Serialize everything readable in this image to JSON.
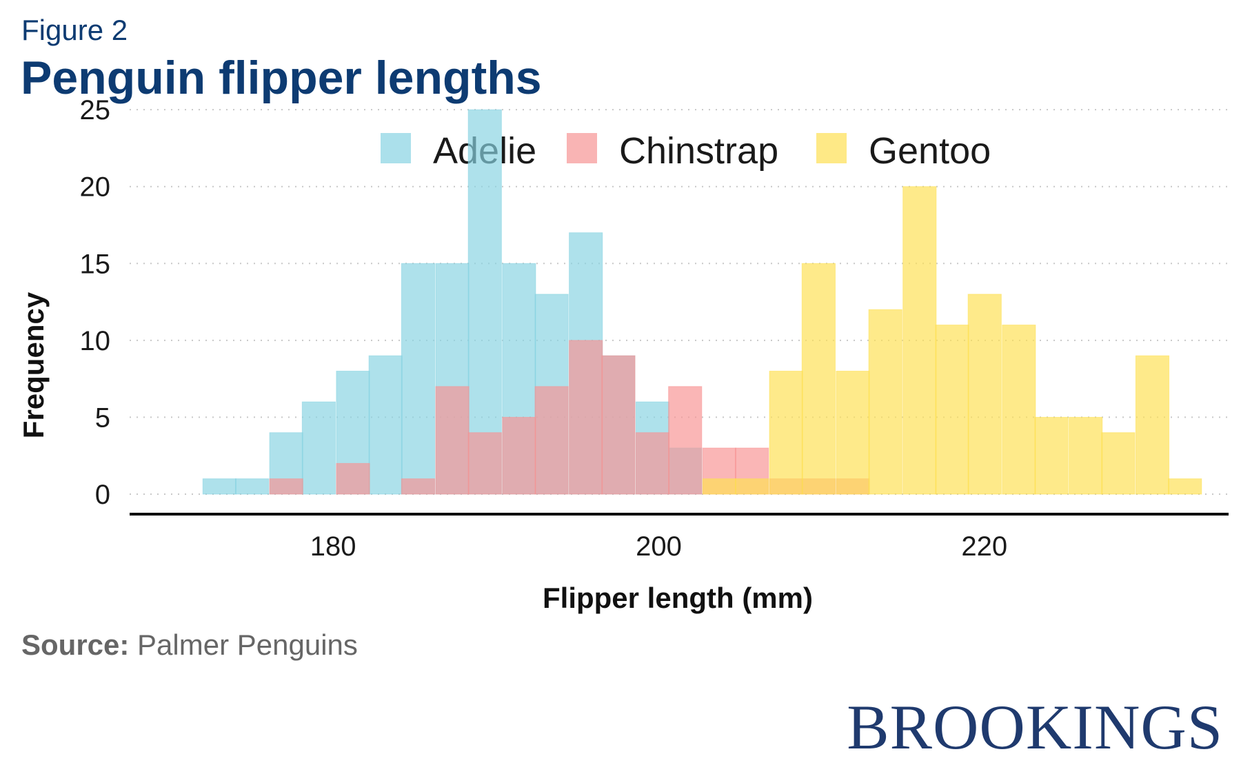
{
  "figure_label": "Figure 2",
  "title": "Penguin flipper lengths",
  "source_label": "Source:",
  "source_text": "Palmer Penguins",
  "brand": "BROOKINGS",
  "chart_data": {
    "type": "bar",
    "subtype": "overlapping-histogram",
    "bin_width": 2.04,
    "xlabel": "Flipper length (mm)",
    "ylabel": "Frequency",
    "xlim": [
      167.5,
      235
    ],
    "ylim": [
      -1.3,
      25.5
    ],
    "xticks": [
      180,
      200,
      220
    ],
    "yticks": [
      0,
      5,
      10,
      15,
      20,
      25
    ],
    "grid": "horizontal-dotted",
    "legend_position": "top-center",
    "series": [
      {
        "name": "Adelie",
        "color": "#87d3e2",
        "bin_starts": [
          172.0,
          174.0,
          176.1,
          178.1,
          180.2,
          182.2,
          184.2,
          186.3,
          188.3,
          190.4,
          192.4,
          194.5,
          196.5,
          198.6,
          200.6
        ],
        "values": [
          1,
          1,
          4,
          6,
          8,
          9,
          15,
          15,
          25,
          15,
          13,
          17,
          9,
          6,
          3
        ]
      },
      {
        "name": "Chinstrap",
        "color": "#f79494",
        "bin_starts": [
          176.1,
          180.2,
          184.2,
          186.3,
          188.3,
          190.4,
          192.4,
          194.5,
          196.5,
          198.6,
          200.6,
          202.7,
          204.7,
          206.8,
          208.8,
          210.9
        ],
        "values": [
          1,
          2,
          1,
          7,
          4,
          5,
          7,
          10,
          9,
          4,
          7,
          3,
          3,
          1,
          1,
          1
        ]
      },
      {
        "name": "Gentoo",
        "color": "#fde052",
        "bin_starts": [
          202.7,
          204.7,
          206.8,
          208.8,
          210.9,
          212.9,
          215.0,
          217.0,
          219.0,
          221.1,
          223.1,
          225.2,
          227.2,
          229.3,
          231.3
        ],
        "values": [
          1,
          1,
          8,
          15,
          8,
          12,
          20,
          11,
          13,
          11,
          5,
          5,
          4,
          9,
          1
        ]
      }
    ]
  }
}
